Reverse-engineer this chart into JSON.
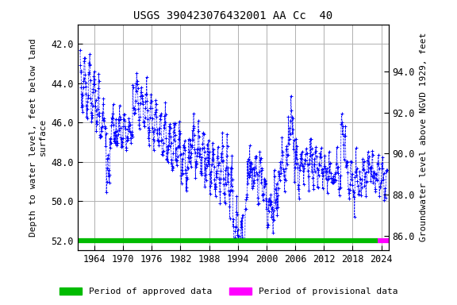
{
  "title": "USGS 390423076432001 AA Cc  40",
  "ylabel_left": "Depth to water level, feet below land\nsurface",
  "ylabel_right": "Groundwater level above NGVD 1929, feet",
  "xlabel_ticks": [
    1964,
    1970,
    1976,
    1982,
    1988,
    1994,
    2000,
    2006,
    2012,
    2018,
    2024
  ],
  "ylim_left": [
    52.5,
    41.0
  ],
  "ylim_right": [
    85.3,
    96.3
  ],
  "yticks_left": [
    42.0,
    44.0,
    46.0,
    48.0,
    50.0,
    52.0
  ],
  "yticks_right": [
    86.0,
    88.0,
    90.0,
    92.0,
    94.0
  ],
  "xlim": [
    1960.5,
    2025.5
  ],
  "data_color": "#0000ff",
  "approved_color": "#00bb00",
  "provisional_color": "#ff00ff",
  "background_color": "#ffffff",
  "grid_color": "#b0b0b0",
  "title_fontsize": 10,
  "axis_label_fontsize": 8,
  "tick_fontsize": 8.5,
  "approved_bar_xstart": 1960.5,
  "approved_bar_xend": 2023.2,
  "provisional_bar_xstart": 2023.2,
  "provisional_bar_xend": 2025.5,
  "bar_y": 52.0,
  "bar_linewidth": 4.5,
  "legend_approved": "Period of approved data",
  "legend_provisional": "Period of provisional data",
  "legend_fontsize": 8
}
